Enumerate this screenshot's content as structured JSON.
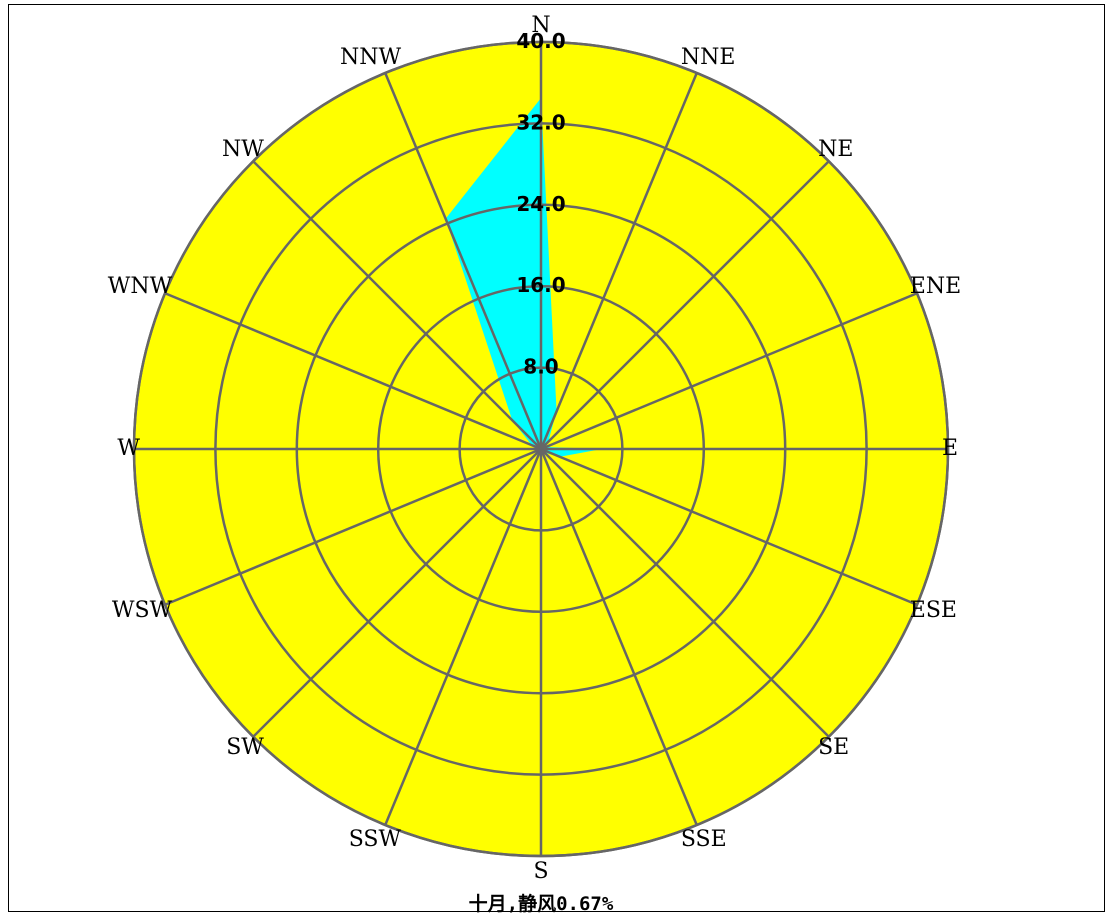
{
  "chart_data": {
    "type": "radar",
    "subtype": "wind-rose",
    "directions": [
      "N",
      "NNE",
      "NE",
      "ENE",
      "E",
      "ESE",
      "SE",
      "SSE",
      "S",
      "SSW",
      "SW",
      "WSW",
      "W",
      "WNW",
      "NW",
      "NNW"
    ],
    "values": [
      34.5,
      4,
      1,
      0.5,
      6,
      2,
      0.5,
      0.5,
      0.5,
      0.5,
      0.5,
      0.5,
      0.5,
      1,
      4,
      24.5
    ],
    "rmax": 40,
    "rings": [
      8,
      16,
      24,
      32,
      40
    ],
    "ring_labels": [
      "8.0",
      "16.0",
      "24.0",
      "32.0",
      "40.0"
    ],
    "caption": "十月,静风0.67%",
    "colors": {
      "background": "#ffff00",
      "fill": "#00ffff",
      "grid": "#666666"
    }
  }
}
